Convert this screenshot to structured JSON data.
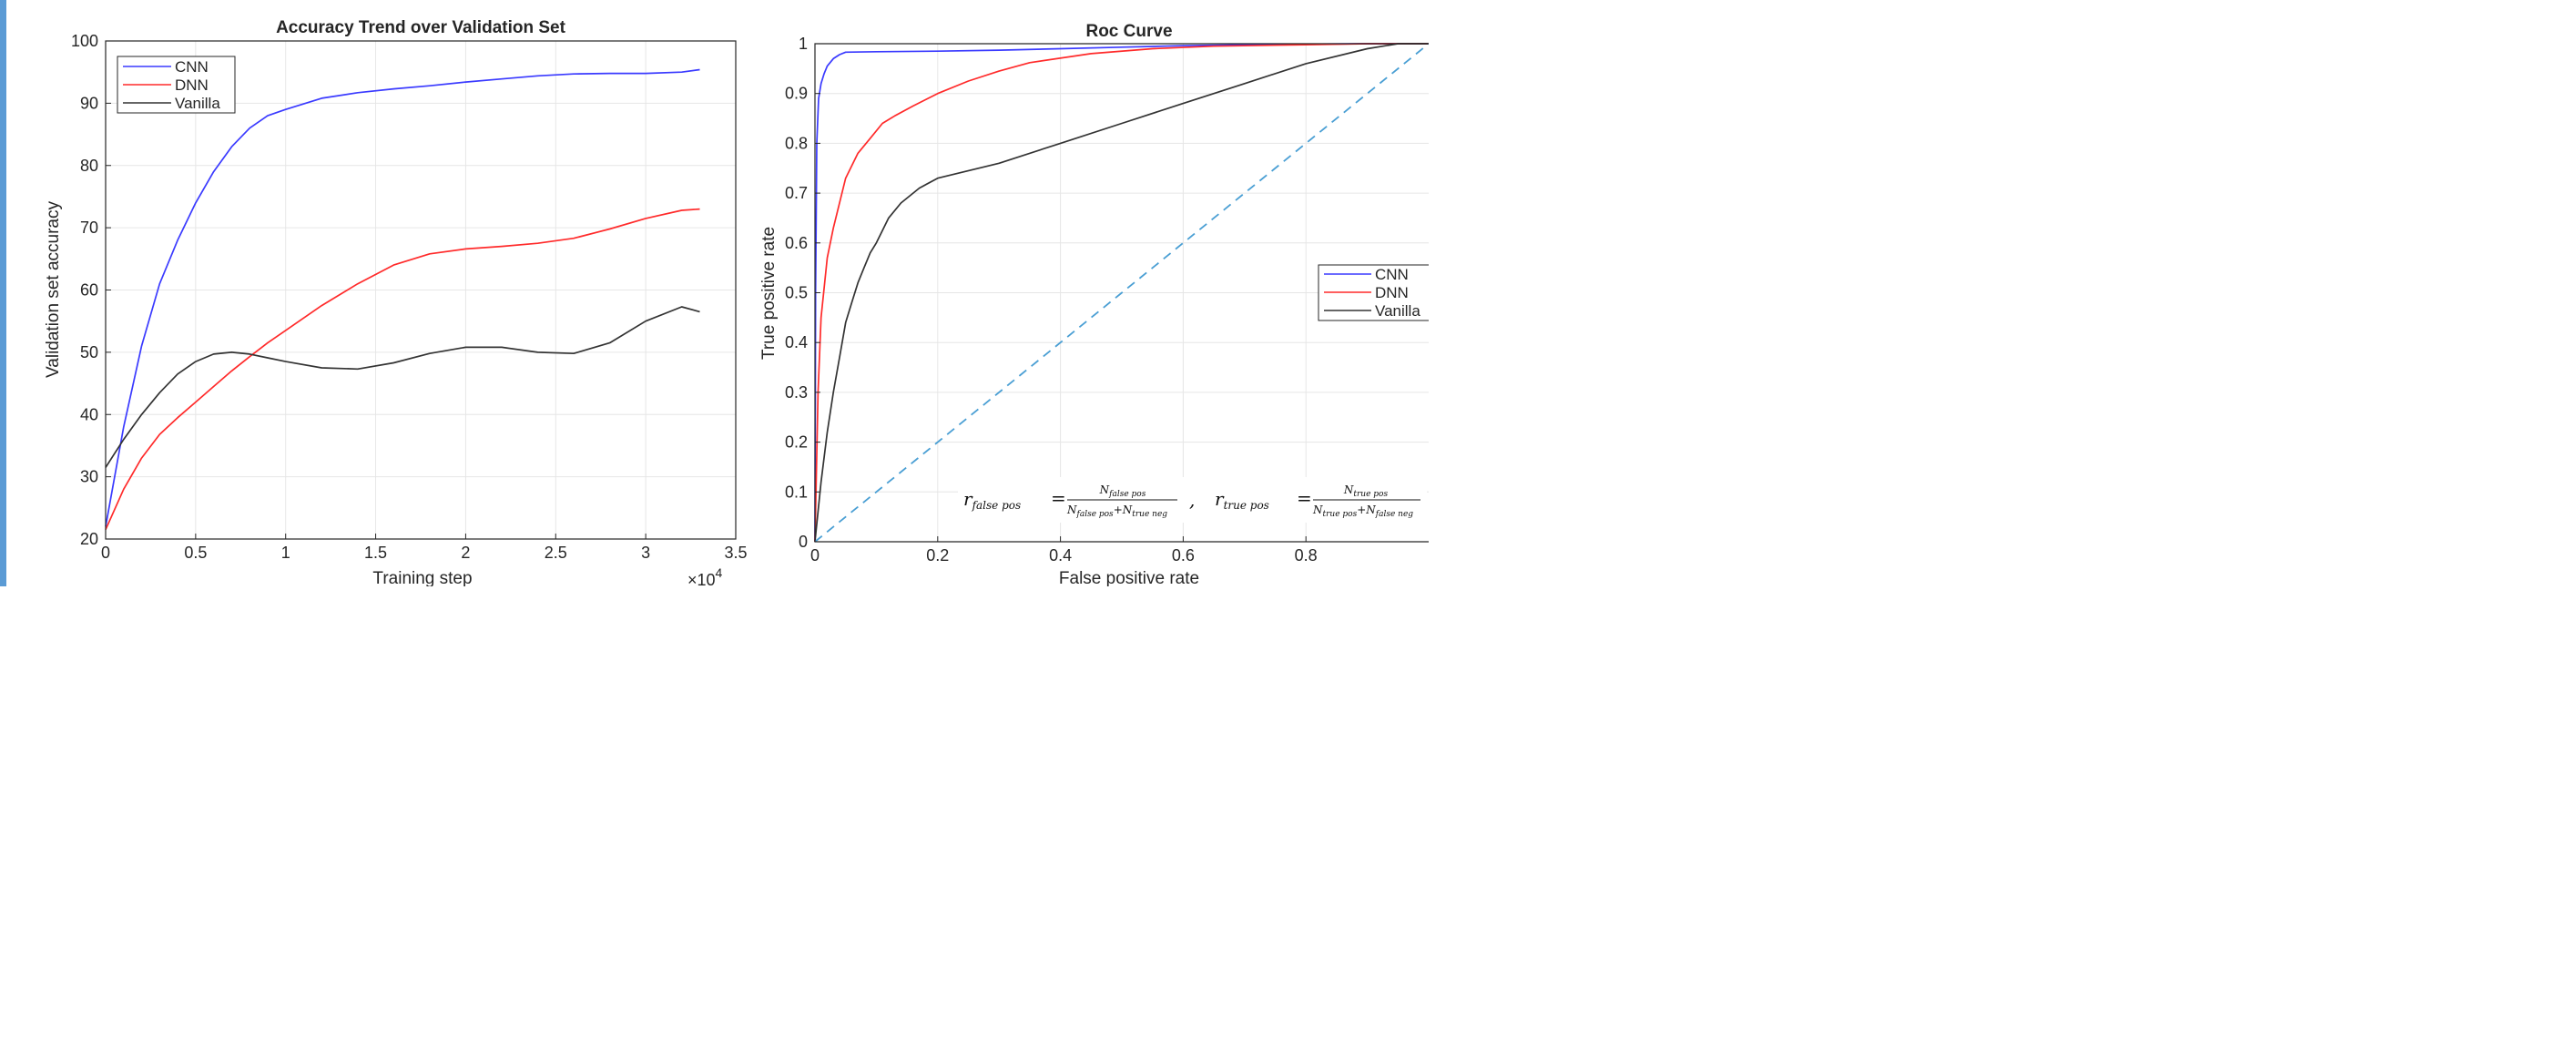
{
  "colors": {
    "CNN": "#3a3aff",
    "DNN": "#ff2a2a",
    "Vanilla": "#333333",
    "diagonal": "#4a9fd4",
    "grid": "#e6e6e6",
    "page_border": "#5b9bd5"
  },
  "chart_data": [
    {
      "type": "line",
      "title": "Accuracy Trend over Validation Set",
      "xlabel": "Training step",
      "ylabel": "Validation set accuracy",
      "x_multiplier_label": "×10",
      "x_multiplier_exp": "4",
      "xlim": [
        0,
        3.5
      ],
      "ylim": [
        20,
        100
      ],
      "xticks": [
        0,
        0.5,
        1,
        1.5,
        2,
        2.5,
        3,
        3.5
      ],
      "xtick_labels": [
        "0",
        "0.5",
        "1",
        "1.5",
        "2",
        "2.5",
        "3",
        "3.5"
      ],
      "yticks": [
        20,
        30,
        40,
        50,
        60,
        70,
        80,
        90,
        100
      ],
      "ytick_labels": [
        "20",
        "30",
        "40",
        "50",
        "60",
        "70",
        "80",
        "90",
        "100"
      ],
      "grid": true,
      "legend": "top-left",
      "series": [
        {
          "name": "CNN",
          "x": [
            0,
            0.1,
            0.2,
            0.3,
            0.4,
            0.5,
            0.6,
            0.7,
            0.8,
            0.9,
            1.0,
            1.2,
            1.4,
            1.6,
            1.8,
            2.0,
            2.2,
            2.4,
            2.6,
            2.8,
            3.0,
            3.2,
            3.3
          ],
          "y": [
            22,
            38,
            51,
            61,
            68,
            74,
            79,
            83,
            86,
            88,
            89,
            90.8,
            91.7,
            92.3,
            92.8,
            93.4,
            93.9,
            94.4,
            94.7,
            94.8,
            94.8,
            95,
            95.4
          ]
        },
        {
          "name": "DNN",
          "x": [
            0,
            0.1,
            0.2,
            0.3,
            0.4,
            0.5,
            0.6,
            0.7,
            0.8,
            0.9,
            1.0,
            1.2,
            1.4,
            1.6,
            1.8,
            2.0,
            2.2,
            2.4,
            2.6,
            2.8,
            3.0,
            3.2,
            3.3
          ],
          "y": [
            21.5,
            28,
            33,
            36.8,
            39.5,
            42,
            44.5,
            47,
            49.3,
            51.5,
            53.5,
            57.5,
            61,
            64,
            65.8,
            66.6,
            67,
            67.5,
            68.3,
            69.8,
            71.5,
            72.8,
            73
          ]
        },
        {
          "name": "Vanilla",
          "x": [
            0,
            0.1,
            0.2,
            0.3,
            0.4,
            0.5,
            0.6,
            0.7,
            0.8,
            0.9,
            1.0,
            1.2,
            1.4,
            1.6,
            1.8,
            2.0,
            2.2,
            2.4,
            2.6,
            2.8,
            3.0,
            3.2,
            3.3
          ],
          "y": [
            31.5,
            36,
            40,
            43.5,
            46.5,
            48.5,
            49.7,
            50,
            49.7,
            49.1,
            48.5,
            47.5,
            47.3,
            48.3,
            49.8,
            50.8,
            50.8,
            50,
            49.8,
            51.5,
            55,
            57.3,
            56.5
          ]
        }
      ]
    },
    {
      "type": "line",
      "title": "Roc Curve",
      "xlabel": "False positive rate",
      "ylabel": "True positive rate",
      "xlim": [
        0,
        1
      ],
      "ylim": [
        0,
        1
      ],
      "xticks": [
        0,
        0.2,
        0.4,
        0.6,
        0.8
      ],
      "xtick_labels": [
        "0",
        "0.2",
        "0.4",
        "0.6",
        "0.8"
      ],
      "yticks": [
        0,
        0.1,
        0.2,
        0.3,
        0.4,
        0.5,
        0.6,
        0.7,
        0.8,
        0.9,
        1
      ],
      "ytick_labels": [
        "0",
        "0.1",
        "0.2",
        "0.3",
        "0.4",
        "0.5",
        "0.6",
        "0.7",
        "0.8",
        "0.9",
        "1"
      ],
      "grid": true,
      "legend": "right",
      "series": [
        {
          "name": "CNN",
          "x": [
            0,
            0.001,
            0.003,
            0.006,
            0.01,
            0.015,
            0.02,
            0.03,
            0.04,
            0.05,
            0.1,
            0.2,
            0.3,
            0.4,
            0.5,
            0.6,
            0.7,
            0.8,
            0.9,
            1.0
          ],
          "y": [
            0,
            0.5,
            0.8,
            0.89,
            0.92,
            0.94,
            0.955,
            0.97,
            0.978,
            0.983,
            0.984,
            0.985,
            0.987,
            0.99,
            0.993,
            0.996,
            0.998,
            0.999,
            1.0,
            1.0
          ]
        },
        {
          "name": "DNN",
          "x": [
            0,
            0.005,
            0.01,
            0.02,
            0.03,
            0.05,
            0.07,
            0.09,
            0.11,
            0.13,
            0.16,
            0.2,
            0.25,
            0.3,
            0.35,
            0.45,
            0.55,
            0.65,
            0.8,
            0.9,
            1.0
          ],
          "y": [
            0,
            0.3,
            0.45,
            0.57,
            0.63,
            0.73,
            0.78,
            0.81,
            0.84,
            0.855,
            0.875,
            0.9,
            0.925,
            0.945,
            0.962,
            0.98,
            0.99,
            0.995,
            0.998,
            1.0,
            1.0
          ]
        },
        {
          "name": "Vanilla",
          "x": [
            0,
            0.01,
            0.02,
            0.03,
            0.04,
            0.05,
            0.06,
            0.07,
            0.08,
            0.09,
            0.1,
            0.12,
            0.14,
            0.17,
            0.2,
            0.3,
            0.4,
            0.5,
            0.6,
            0.7,
            0.8,
            0.9,
            0.95,
            1.0
          ],
          "y": [
            0,
            0.12,
            0.22,
            0.3,
            0.37,
            0.44,
            0.48,
            0.52,
            0.55,
            0.58,
            0.6,
            0.65,
            0.68,
            0.71,
            0.73,
            0.76,
            0.8,
            0.84,
            0.88,
            0.92,
            0.96,
            0.99,
            1.0,
            1.0
          ]
        },
        {
          "name": "",
          "style": "dashed",
          "x": [
            0,
            1
          ],
          "y": [
            0,
            1
          ]
        }
      ]
    }
  ],
  "annotation": {
    "r_symbol": "r",
    "fp_subscript": "false pos",
    "fp_num": "N",
    "fp_num_sub": "false pos",
    "fp_den_a": "N",
    "fp_den_a_sub": "false pos",
    "fp_den_b": "N",
    "fp_den_b_sub": "true neg",
    "tp_subscript": "true pos",
    "tp_num": "N",
    "tp_num_sub": "true pos",
    "tp_den_a": "N",
    "tp_den_a_sub": "true pos",
    "tp_den_b": "N",
    "tp_den_b_sub": "false neg",
    "equals": "=",
    "plus": "+",
    "separator": ","
  }
}
